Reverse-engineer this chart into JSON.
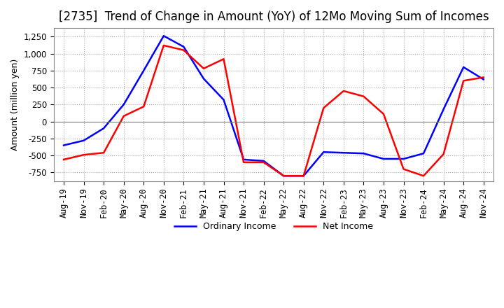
{
  "title": "[2735]  Trend of Change in Amount (YoY) of 12Mo Moving Sum of Incomes",
  "ylabel": "Amount (million yen)",
  "ylim": [
    -875,
    1375
  ],
  "yticks": [
    -750,
    -500,
    -250,
    0,
    250,
    500,
    750,
    1000,
    1250
  ],
  "x_labels": [
    "Aug-19",
    "Nov-19",
    "Feb-20",
    "May-20",
    "Aug-20",
    "Nov-20",
    "Feb-21",
    "May-21",
    "Aug-21",
    "Nov-21",
    "Feb-22",
    "May-22",
    "Aug-22",
    "Nov-22",
    "Feb-23",
    "May-23",
    "Aug-23",
    "Nov-23",
    "Feb-24",
    "May-24",
    "Aug-24",
    "Nov-24"
  ],
  "ordinary_income": [
    -350,
    -280,
    -100,
    250,
    750,
    1260,
    1100,
    630,
    320,
    -560,
    -580,
    -800,
    -800,
    -450,
    -460,
    -470,
    -550,
    -550,
    -470,
    180,
    800,
    620
  ],
  "net_income": [
    -560,
    -490,
    -460,
    80,
    220,
    1120,
    1050,
    780,
    920,
    -600,
    -600,
    -800,
    -800,
    200,
    450,
    370,
    110,
    -700,
    -800,
    -480,
    600,
    650
  ],
  "ordinary_color": "#0000ff",
  "net_color": "#ff0000",
  "grid_color": "#aaaaaa",
  "background_color": "#ffffff",
  "title_fontsize": 12,
  "axis_fontsize": 9,
  "tick_fontsize": 8.5
}
